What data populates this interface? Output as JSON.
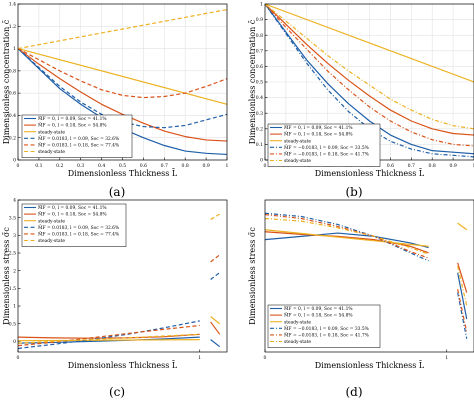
{
  "figure_labels": [
    "(a)",
    "(b)",
    "(c)",
    "(d)"
  ],
  "colors": {
    "blue": "#1f5fa8",
    "orange": "#d95319",
    "yellow": "#edb120",
    "frame": "#000000",
    "grid": "#e2e2e2"
  },
  "chart_data": [
    {
      "type": "line",
      "panel": "(a)",
      "xlabel": "Dimensionless Thickness L̄",
      "ylabel": "Dimensionless concentration c̄",
      "xlim": [
        0,
        1
      ],
      "ylim": [
        0,
        1.4
      ],
      "xticks": [
        "0",
        "0.1",
        "0.2",
        "0.3",
        "0.4",
        "0.5",
        "0.6",
        "0.7",
        "0.8",
        "0.9",
        "1"
      ],
      "yticks": [
        "0",
        "0.2",
        "0.4",
        "0.6",
        "0.8",
        "1",
        "1.2",
        "1.4"
      ],
      "grid": true,
      "legend_position": "bottom-left",
      "legend": [
        {
          "text": "M̄F = 0, l = 0.09, Soc = 41.1%",
          "color": "#1f5fa8",
          "dash": "solid"
        },
        {
          "text": "M̄F = 0, l = 0.18, Soc = 54.8%",
          "color": "#d95319",
          "dash": "solid"
        },
        {
          "text": "steady-state",
          "color": "#edb120",
          "dash": "solid"
        },
        {
          "text": "M̄F = 0.0183, l = 0.09, Soc = 32.6%",
          "color": "#1f5fa8",
          "dash": "dashed"
        },
        {
          "text": "M̄F = 0.0183, l = 0.18, Soc = 77.4%",
          "color": "#d95319",
          "dash": "dashed"
        },
        {
          "text": "steady-state",
          "color": "#edb120",
          "dash": "dashed"
        }
      ],
      "series": [
        {
          "color": "#1f5fa8",
          "dash": "solid",
          "x": [
            0,
            0.1,
            0.2,
            0.3,
            0.4,
            0.5,
            0.6,
            0.7,
            0.8,
            0.9,
            1
          ],
          "y": [
            1,
            0.82,
            0.64,
            0.5,
            0.38,
            0.28,
            0.2,
            0.13,
            0.08,
            0.06,
            0.05
          ]
        },
        {
          "color": "#d95319",
          "dash": "solid",
          "x": [
            0,
            0.1,
            0.2,
            0.3,
            0.4,
            0.5,
            0.6,
            0.7,
            0.8,
            0.9,
            1
          ],
          "y": [
            1,
            0.86,
            0.73,
            0.61,
            0.5,
            0.41,
            0.33,
            0.26,
            0.21,
            0.18,
            0.17
          ]
        },
        {
          "color": "#edb120",
          "dash": "solid",
          "x": [
            0,
            1
          ],
          "y": [
            1,
            0.5
          ]
        },
        {
          "color": "#1f5fa8",
          "dash": "dashed",
          "x": [
            0,
            0.1,
            0.2,
            0.3,
            0.4,
            0.5,
            0.6,
            0.7,
            0.8,
            0.9,
            1
          ],
          "y": [
            1,
            0.83,
            0.66,
            0.52,
            0.41,
            0.34,
            0.3,
            0.29,
            0.31,
            0.36,
            0.41
          ]
        },
        {
          "color": "#d95319",
          "dash": "dashed",
          "x": [
            0,
            0.1,
            0.2,
            0.3,
            0.4,
            0.5,
            0.6,
            0.7,
            0.8,
            0.9,
            1
          ],
          "y": [
            1,
            0.9,
            0.8,
            0.71,
            0.63,
            0.58,
            0.56,
            0.57,
            0.6,
            0.66,
            0.73
          ]
        },
        {
          "color": "#edb120",
          "dash": "dashed",
          "x": [
            0,
            1
          ],
          "y": [
            1,
            1.35
          ]
        }
      ]
    },
    {
      "type": "line",
      "panel": "(b)",
      "xlabel": "Dimensionless Thickness L̄",
      "ylabel": "Dimensionless concentration c̄",
      "xlim": [
        0,
        1
      ],
      "ylim": [
        0,
        1
      ],
      "xticks": [
        "0",
        "0.1",
        "0.2",
        "0.3",
        "0.4",
        "0.5",
        "0.6",
        "0.7",
        "0.8",
        "0.9",
        "1"
      ],
      "yticks": [
        "0",
        "0.1",
        "0.2",
        "0.3",
        "0.4",
        "0.5",
        "0.6",
        "0.7",
        "0.8",
        "0.9",
        "1"
      ],
      "grid": true,
      "legend_position": "bottom-left",
      "legend": [
        {
          "text": "M̄F = 0, l = 0.09, Soc = 41.1%",
          "color": "#1f5fa8",
          "dash": "solid"
        },
        {
          "text": "M̄F = 0, l = 0.18, Soc = 54.8%",
          "color": "#d95319",
          "dash": "solid"
        },
        {
          "text": "steady-state",
          "color": "#edb120",
          "dash": "solid"
        },
        {
          "text": "M̄F = −0.0183, l = 0.09, Soc = 33.5%",
          "color": "#1f5fa8",
          "dash": "dashdot"
        },
        {
          "text": "M̄F = −0.0183, l = 0.18, Soc = 41.7%",
          "color": "#d95319",
          "dash": "dashdot"
        },
        {
          "text": "steady-state",
          "color": "#edb120",
          "dash": "dashdot"
        }
      ],
      "series": [
        {
          "color": "#1f5fa8",
          "dash": "solid",
          "x": [
            0,
            0.1,
            0.2,
            0.3,
            0.4,
            0.5,
            0.6,
            0.7,
            0.8,
            0.9,
            1
          ],
          "y": [
            1,
            0.82,
            0.64,
            0.49,
            0.36,
            0.25,
            0.16,
            0.1,
            0.06,
            0.05,
            0.04
          ]
        },
        {
          "color": "#d95319",
          "dash": "solid",
          "x": [
            0,
            0.1,
            0.2,
            0.3,
            0.4,
            0.5,
            0.6,
            0.7,
            0.8,
            0.9,
            1
          ],
          "y": [
            1,
            0.87,
            0.74,
            0.62,
            0.51,
            0.41,
            0.32,
            0.25,
            0.2,
            0.17,
            0.16
          ]
        },
        {
          "color": "#edb120",
          "dash": "solid",
          "x": [
            0,
            1
          ],
          "y": [
            1,
            0.5
          ]
        },
        {
          "color": "#1f5fa8",
          "dash": "dashdot",
          "x": [
            0,
            0.1,
            0.2,
            0.3,
            0.4,
            0.5,
            0.6,
            0.7,
            0.8,
            0.9,
            1
          ],
          "y": [
            1,
            0.81,
            0.62,
            0.45,
            0.31,
            0.2,
            0.12,
            0.07,
            0.04,
            0.03,
            0.02
          ]
        },
        {
          "color": "#d95319",
          "dash": "dashdot",
          "x": [
            0,
            0.1,
            0.2,
            0.3,
            0.4,
            0.5,
            0.6,
            0.7,
            0.8,
            0.9,
            1
          ],
          "y": [
            1,
            0.85,
            0.71,
            0.57,
            0.45,
            0.34,
            0.25,
            0.18,
            0.13,
            0.1,
            0.09
          ]
        },
        {
          "color": "#edb120",
          "dash": "dashdot",
          "x": [
            0,
            0.1,
            0.2,
            0.3,
            0.4,
            0.5,
            0.6,
            0.7,
            0.8,
            0.9,
            1
          ],
          "y": [
            1,
            0.89,
            0.78,
            0.67,
            0.57,
            0.48,
            0.39,
            0.32,
            0.26,
            0.22,
            0.2
          ]
        }
      ]
    },
    {
      "type": "line",
      "panel": "(c)",
      "xlabel": "Dimensionless Thickness L̄",
      "ylabel": "Dimensionless stress σ̄c",
      "xlim": [
        0,
        1.15
      ],
      "ylim": [
        -0.3,
        4
      ],
      "xticks": [
        "0",
        "1"
      ],
      "yticks": [
        "-0.5",
        "0",
        "0.5",
        "1",
        "1.5",
        "2",
        "2.5",
        "3",
        "3.5",
        "4"
      ],
      "grid": false,
      "legend_position": "top-left",
      "legend": [
        {
          "text": "M̄F = 0, l = 0.09, Soc = 41.1%",
          "color": "#1f5fa8",
          "dash": "solid"
        },
        {
          "text": "M̄F = 0, l = 0.18, Soc = 54.8%",
          "color": "#d95319",
          "dash": "solid"
        },
        {
          "text": "steady-state",
          "color": "#edb120",
          "dash": "solid"
        },
        {
          "text": "M̄F = 0.0183, l = 0.09, Soc = 32.6%",
          "color": "#1f5fa8",
          "dash": "dashed"
        },
        {
          "text": "M̄F = 0.0183, l = 0.18, Soc = 77.4%",
          "color": "#d95319",
          "dash": "dashed"
        },
        {
          "text": "steady-state",
          "color": "#edb120",
          "dash": "dashed"
        }
      ],
      "series": [
        {
          "color": "#1f5fa8",
          "dash": "solid",
          "x": [
            0,
            0.2,
            0.4,
            0.6,
            0.8,
            1.0
          ],
          "y": [
            -0.05,
            -0.03,
            0.0,
            0.03,
            0.07,
            0.12
          ]
        },
        {
          "color": "#1f5fa8",
          "dash": "solid",
          "x": [
            1.06,
            1.11
          ],
          "y": [
            0.05,
            -0.15
          ]
        },
        {
          "color": "#d95319",
          "dash": "solid",
          "x": [
            0,
            0.2,
            0.4,
            0.6,
            0.8,
            1.0
          ],
          "y": [
            0.12,
            0.1,
            0.09,
            0.1,
            0.13,
            0.2
          ]
        },
        {
          "color": "#d95319",
          "dash": "solid",
          "x": [
            1.06,
            1.11
          ],
          "y": [
            0.55,
            0.2
          ]
        },
        {
          "color": "#edb120",
          "dash": "solid",
          "x": [
            0,
            1.0
          ],
          "y": [
            0.02,
            0.05
          ]
        },
        {
          "color": "#edb120",
          "dash": "solid",
          "x": [
            1.06,
            1.11
          ],
          "y": [
            0.7,
            0.5
          ]
        },
        {
          "color": "#1f5fa8",
          "dash": "dashed",
          "x": [
            0,
            0.2,
            0.4,
            0.6,
            0.8,
            1.0
          ],
          "y": [
            -0.2,
            -0.08,
            0.05,
            0.2,
            0.38,
            0.58
          ]
        },
        {
          "color": "#1f5fa8",
          "dash": "dashed",
          "x": [
            1.06,
            1.11
          ],
          "y": [
            1.75,
            1.95
          ]
        },
        {
          "color": "#d95319",
          "dash": "dashed",
          "x": [
            0,
            0.2,
            0.4,
            0.6,
            0.8,
            1.0
          ],
          "y": [
            -0.12,
            -0.02,
            0.1,
            0.22,
            0.34,
            0.45
          ]
        },
        {
          "color": "#d95319",
          "dash": "dashed",
          "x": [
            1.06,
            1.11
          ],
          "y": [
            2.25,
            2.45
          ]
        },
        {
          "color": "#edb120",
          "dash": "dashed",
          "x": [
            0,
            1.0
          ],
          "y": [
            -0.05,
            0.2
          ]
        },
        {
          "color": "#edb120",
          "dash": "dashed",
          "x": [
            1.06,
            1.11
          ],
          "y": [
            3.45,
            3.6
          ]
        }
      ]
    },
    {
      "type": "line",
      "panel": "(d)",
      "xlabel": "Dimensionless Thickness L̄",
      "ylabel": "Dimensionless stress σ̄c",
      "xlim": [
        0,
        1.15
      ],
      "ylim": [
        -1.8,
        0.5
      ],
      "xticks": [
        "0",
        "1"
      ],
      "yticks": [],
      "grid": false,
      "legend_position": "bottom-left",
      "legend": [
        {
          "text": "M̄F = 0, l = 0.09, Soc = 41.1%",
          "color": "#1f5fa8",
          "dash": "solid"
        },
        {
          "text": "M̄F = 0, l = 0.18, Soc = 54.8%",
          "color": "#d95319",
          "dash": "solid"
        },
        {
          "text": "steady-state",
          "color": "#edb120",
          "dash": "solid"
        },
        {
          "text": "M̄F = −0.0183, l = 0.09, Soc = 33.5%",
          "color": "#1f5fa8",
          "dash": "dashdot"
        },
        {
          "text": "M̄F = −0.0183, l = 0.18, Soc = 41.7%",
          "color": "#d95319",
          "dash": "dashdot"
        },
        {
          "text": "steady-state",
          "color": "#edb120",
          "dash": "dashdot"
        }
      ],
      "series": [
        {
          "color": "#1f5fa8",
          "dash": "solid",
          "x": [
            0,
            0.2,
            0.4,
            0.6,
            0.8,
            0.9
          ],
          "y": [
            -0.1,
            -0.05,
            0.0,
            -0.05,
            -0.15,
            -0.22
          ]
        },
        {
          "color": "#1f5fa8",
          "dash": "solid",
          "x": [
            1.06,
            1.11
          ],
          "y": [
            -0.6,
            -1.3
          ]
        },
        {
          "color": "#d95319",
          "dash": "solid",
          "x": [
            0,
            0.2,
            0.4,
            0.6,
            0.8,
            0.9
          ],
          "y": [
            0.02,
            -0.02,
            -0.05,
            -0.1,
            -0.2,
            -0.3
          ]
        },
        {
          "color": "#d95319",
          "dash": "solid",
          "x": [
            1.06,
            1.11
          ],
          "y": [
            -0.45,
            -0.9
          ]
        },
        {
          "color": "#edb120",
          "dash": "solid",
          "x": [
            0,
            0.9
          ],
          "y": [
            0.05,
            -0.2
          ]
        },
        {
          "color": "#edb120",
          "dash": "solid",
          "x": [
            1.06,
            1.11
          ],
          "y": [
            0.15,
            0.05
          ]
        },
        {
          "color": "#1f5fa8",
          "dash": "dashdot",
          "x": [
            0,
            0.2,
            0.4,
            0.6,
            0.8,
            0.9
          ],
          "y": [
            0.3,
            0.25,
            0.13,
            -0.05,
            -0.3,
            -0.42
          ]
        },
        {
          "color": "#1f5fa8",
          "dash": "dashdot",
          "x": [
            1.06,
            1.11
          ],
          "y": [
            -0.9,
            -1.6
          ]
        },
        {
          "color": "#d95319",
          "dash": "dashdot",
          "x": [
            0,
            0.2,
            0.4,
            0.6,
            0.8,
            0.9
          ],
          "y": [
            0.28,
            0.22,
            0.1,
            -0.05,
            -0.28,
            -0.38
          ]
        },
        {
          "color": "#d95319",
          "dash": "dashdot",
          "x": [
            1.06,
            1.11
          ],
          "y": [
            -0.85,
            -1.5
          ]
        },
        {
          "color": "#edb120",
          "dash": "dashdot",
          "x": [
            0,
            0.2,
            0.4,
            0.6,
            0.8,
            0.9
          ],
          "y": [
            0.22,
            0.18,
            0.08,
            -0.05,
            -0.22,
            -0.32
          ]
        },
        {
          "color": "#edb120",
          "dash": "dashdot",
          "x": [
            1.06,
            1.11
          ],
          "y": [
            -0.5,
            -1.1
          ]
        }
      ]
    }
  ]
}
